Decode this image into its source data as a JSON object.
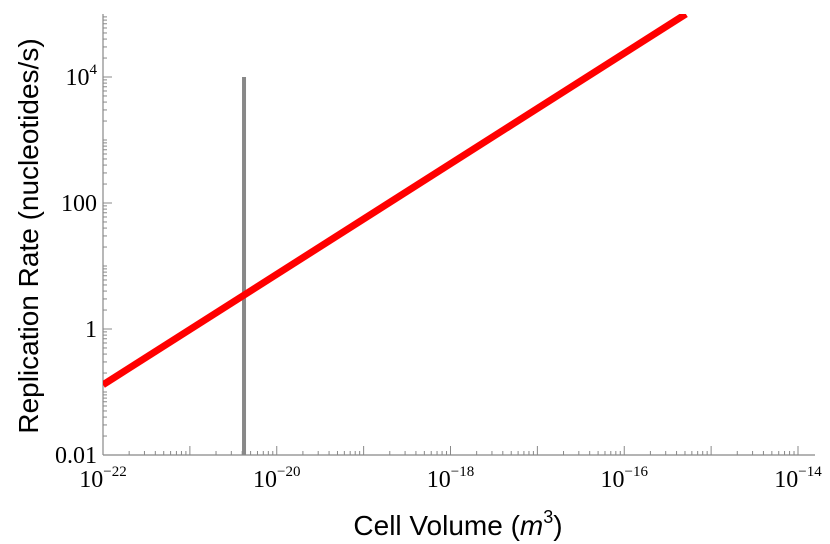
{
  "chart_data": {
    "type": "line",
    "xlabel": "Cell Volume (",
    "xlabel_unit": "m",
    "xlabel_unit_exp": "3",
    "xlabel_close": ")",
    "ylabel": "Replication Rate (nucleotides/s)",
    "x_scale": "log",
    "y_scale": "log",
    "xlim": [
      1e-22,
      1e-14
    ],
    "ylim": [
      0.01,
      100000
    ],
    "grid": false,
    "x_ticks": [
      {
        "value": 1e-22,
        "base": "10",
        "exp": "−22"
      },
      {
        "value": 1e-20,
        "base": "10",
        "exp": "−20"
      },
      {
        "value": 1e-18,
        "base": "10",
        "exp": "−18"
      },
      {
        "value": 1e-16,
        "base": "10",
        "exp": "−16"
      },
      {
        "value": 1e-14,
        "base": "10",
        "exp": "−14"
      }
    ],
    "y_ticks": [
      {
        "value": 0.01,
        "label": "0.01"
      },
      {
        "value": 1,
        "label": "1"
      },
      {
        "value": 100,
        "label": "100"
      },
      {
        "value": 10000,
        "base": "10",
        "exp": "4"
      }
    ],
    "series": [
      {
        "color": "#ff0000",
        "x": [
          1e-22,
          5.12e-16
        ],
        "y": [
          0.13,
          100000
        ]
      }
    ],
    "vertical_line": {
      "x": 4.2e-21,
      "y_range": [
        0.01,
        10000
      ],
      "color": "#888888"
    }
  }
}
